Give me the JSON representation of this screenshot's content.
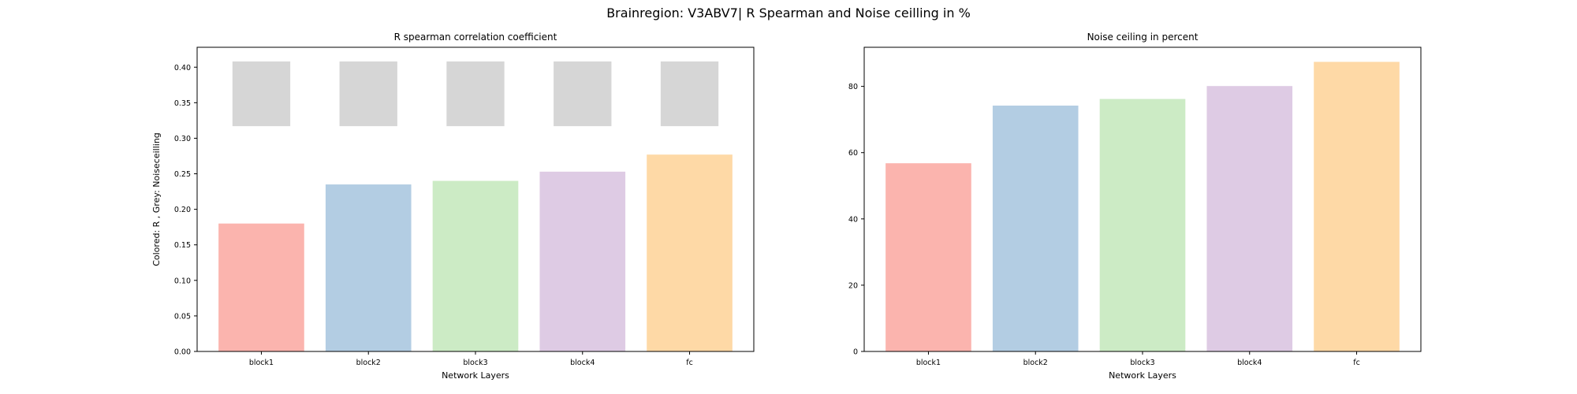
{
  "figure": {
    "title": "Brainregion: V3ABV7| R Spearman and Noise ceilling in %"
  },
  "chart_data": [
    {
      "type": "bar",
      "title": "R spearman correlation coefficient",
      "xlabel": "Network Layers",
      "ylabel": "Colored: R , Grey: Noiseceilling",
      "categories": [
        "block1",
        "block2",
        "block3",
        "block4",
        "fc"
      ],
      "series": [
        {
          "name": "R",
          "values": [
            0.18,
            0.235,
            0.24,
            0.253,
            0.277
          ]
        },
        {
          "name": "Noiseceilling",
          "values": [
            [
              0.317,
              0.408
            ],
            [
              0.317,
              0.408
            ],
            [
              0.317,
              0.408
            ],
            [
              0.317,
              0.408
            ],
            [
              0.317,
              0.408
            ]
          ]
        }
      ],
      "ylim": [
        0,
        0.428
      ],
      "yticks": [
        0.0,
        0.05,
        0.1,
        0.15,
        0.2,
        0.25,
        0.3,
        0.35,
        0.4
      ],
      "ytick_labels": [
        "0.00",
        "0.05",
        "0.10",
        "0.15",
        "0.20",
        "0.25",
        "0.30",
        "0.35",
        "0.40"
      ],
      "grid": false,
      "colors": [
        "#fbb4ae",
        "#b3cde3",
        "#ccebc5",
        "#decbe4",
        "#fed9a6"
      ],
      "noise_color": "#d6d6d6"
    },
    {
      "type": "bar",
      "title": "Noise ceiling in percent",
      "xlabel": "Network Layers",
      "ylabel": "",
      "categories": [
        "block1",
        "block2",
        "block3",
        "block4",
        "fc"
      ],
      "values": [
        56.8,
        74.2,
        76.2,
        80.1,
        87.4
      ],
      "ylim": [
        0,
        91.8
      ],
      "yticks": [
        0,
        20,
        40,
        60,
        80
      ],
      "ytick_labels": [
        "0",
        "20",
        "40",
        "60",
        "80"
      ],
      "grid": false,
      "colors": [
        "#fbb4ae",
        "#b3cde3",
        "#ccebc5",
        "#decbe4",
        "#fed9a6"
      ]
    }
  ]
}
